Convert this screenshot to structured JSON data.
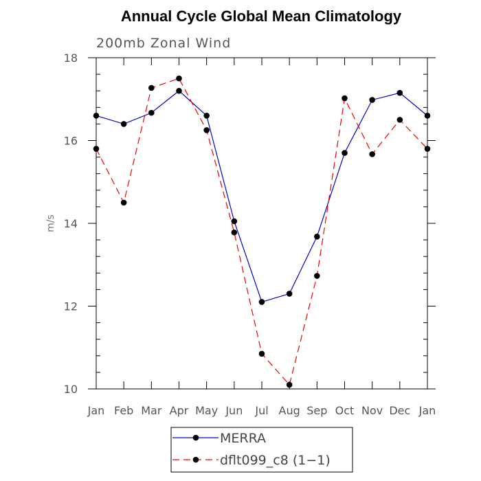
{
  "chart_data": {
    "type": "line",
    "title": "Annual Cycle Global Mean Climatology",
    "subtitle": "200mb Zonal Wind",
    "xlabel": "",
    "ylabel": "m/s",
    "categories": [
      "Jan",
      "Feb",
      "Mar",
      "Apr",
      "May",
      "Jun",
      "Jul",
      "Aug",
      "Sep",
      "Oct",
      "Nov",
      "Dec",
      "Jan"
    ],
    "ylim": [
      10,
      18
    ],
    "yticks": [
      10,
      12,
      14,
      16,
      18
    ],
    "series": [
      {
        "name": "MERRA",
        "color": "#0000cc",
        "dash": "solid",
        "values": [
          16.6,
          16.4,
          16.67,
          17.2,
          16.6,
          14.05,
          12.1,
          12.3,
          13.68,
          15.7,
          16.98,
          17.15,
          16.6
        ]
      },
      {
        "name": "dflt099_c8 (1−1)",
        "color": "#ee0000",
        "dash": "dashed",
        "values": [
          15.8,
          14.5,
          17.27,
          17.5,
          16.25,
          13.78,
          10.85,
          10.1,
          12.73,
          17.02,
          15.67,
          16.5,
          15.8
        ]
      }
    ],
    "legend": {
      "position": "bottom-center"
    }
  }
}
